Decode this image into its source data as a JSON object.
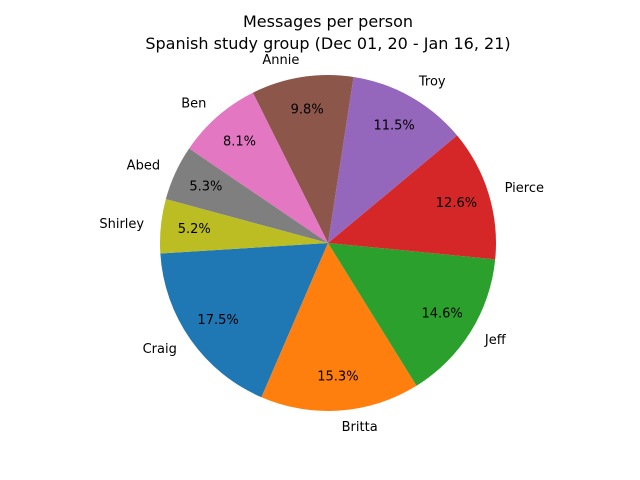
{
  "chart_data": {
    "type": "pie",
    "title": "Messages per person",
    "subtitle": "Spanish study group (Dec 01, 20 - Jan 16, 21)",
    "legend": "none",
    "slices": [
      {
        "label": "Craig",
        "percent": 17.5,
        "percent_label": "17.5%",
        "color": "#1f77b4"
      },
      {
        "label": "Britta",
        "percent": 15.3,
        "percent_label": "15.3%",
        "color": "#ff7f0e"
      },
      {
        "label": "Jeff",
        "percent": 14.6,
        "percent_label": "14.6%",
        "color": "#2ca02c"
      },
      {
        "label": "Pierce",
        "percent": 12.6,
        "percent_label": "12.6%",
        "color": "#d62728"
      },
      {
        "label": "Troy",
        "percent": 11.5,
        "percent_label": "11.5%",
        "color": "#9467bd"
      },
      {
        "label": "Annie",
        "percent": 9.8,
        "percent_label": "9.8%",
        "color": "#8c564b"
      },
      {
        "label": "Ben",
        "percent": 8.1,
        "percent_label": "8.1%",
        "color": "#e377c2"
      },
      {
        "label": "Abed",
        "percent": 5.3,
        "percent_label": "5.3%",
        "color": "#7f7f7f"
      },
      {
        "label": "Shirley",
        "percent": 5.2,
        "percent_label": "5.2%",
        "color": "#bcbd22"
      }
    ]
  }
}
